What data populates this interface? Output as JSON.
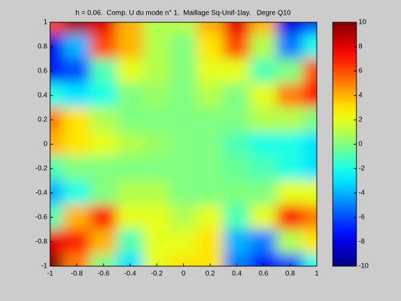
{
  "chart_data": {
    "type": "heatmap",
    "title": "h = 0.06.  Comp. U du mode n° 1.  Maillage Sq-Unif-1lay.   Degre Q10",
    "x": [
      -1,
      -0.8,
      -0.6,
      -0.4,
      -0.2,
      0,
      0.2,
      0.4,
      0.6,
      0.8,
      1
    ],
    "y": [
      1,
      0.8,
      0.6,
      0.4,
      0.2,
      0,
      -0.2,
      -0.4,
      -0.6,
      -0.8,
      -1
    ],
    "z": [
      [
        6,
        9,
        8,
        4,
        1,
        1,
        4,
        8,
        4,
        -8,
        -6
      ],
      [
        -8,
        -4,
        6,
        4,
        1,
        0,
        3,
        6,
        1,
        -5,
        -2
      ],
      [
        -7,
        -6,
        -1,
        2,
        1,
        0,
        2,
        2,
        -1,
        0,
        6
      ],
      [
        -2,
        -3,
        -2,
        0,
        0.5,
        0,
        1,
        0,
        2,
        5,
        7
      ],
      [
        5,
        3,
        1,
        0,
        0,
        0,
        0,
        0,
        1,
        1,
        0
      ],
      [
        4,
        3,
        2,
        1,
        0.5,
        0,
        0,
        -1,
        -2,
        -2,
        -3
      ],
      [
        -1,
        0,
        0,
        0,
        0,
        0,
        0,
        -0.5,
        -1,
        -2,
        -3
      ],
      [
        -4,
        -2,
        0,
        1,
        1,
        0,
        0,
        0,
        0,
        2,
        2
      ],
      [
        -1,
        4,
        7,
        2,
        2,
        1,
        2,
        -1,
        2,
        7,
        5
      ],
      [
        8,
        7,
        4,
        -1,
        2,
        2,
        3,
        -4,
        -5,
        1,
        3
      ],
      [
        10,
        5,
        0,
        -3,
        2,
        3,
        3,
        -5,
        -7,
        -6,
        -2
      ]
    ],
    "xlim": [
      -1,
      1
    ],
    "ylim": [
      -1,
      1
    ],
    "xticks": [
      -1,
      -0.8,
      -0.6,
      -0.4,
      -0.2,
      0,
      0.2,
      0.4,
      0.6,
      0.8,
      1
    ],
    "yticks": [
      -1,
      -0.8,
      -0.6,
      -0.4,
      -0.2,
      0,
      0.2,
      0.4,
      0.6,
      0.8,
      1
    ],
    "clim": [
      -10,
      10
    ],
    "cticks": [
      -10,
      -8,
      -6,
      -4,
      -2,
      0,
      2,
      4,
      6,
      8,
      10
    ],
    "colormap": "jet"
  }
}
